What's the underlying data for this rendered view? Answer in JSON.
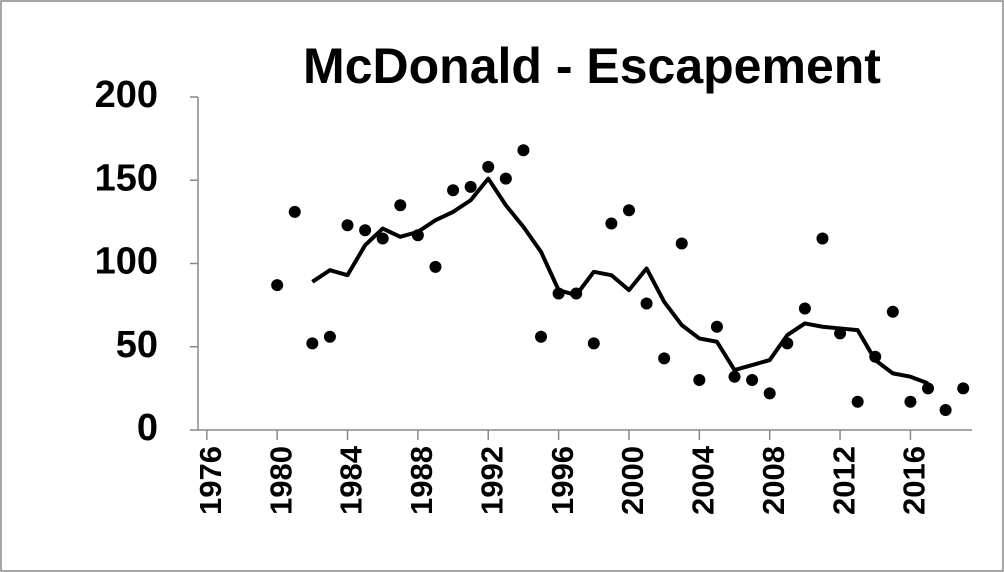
{
  "chart_data": {
    "type": "line",
    "title": "McDonald - Escapement",
    "xlim": [
      1975.5,
      2019.5
    ],
    "xticks": [
      1976,
      1980,
      1984,
      1988,
      1992,
      1996,
      2000,
      2004,
      2008,
      2012,
      2016
    ],
    "ylim": [
      0,
      200
    ],
    "yticks": [
      0,
      50,
      100,
      150,
      200
    ],
    "grid": false,
    "series": [
      {
        "style": "markers",
        "color": "#000000",
        "x": [
          1980,
          1981,
          1982,
          1983,
          1984,
          1985,
          1986,
          1987,
          1988,
          1989,
          1990,
          1991,
          1992,
          1993,
          1994,
          1995,
          1996,
          1997,
          1998,
          1999,
          2000,
          2001,
          2002,
          2003,
          2004,
          2005,
          2006,
          2007,
          2008,
          2009,
          2010,
          2011,
          2012,
          2013,
          2014,
          2015,
          2016,
          2017,
          2018,
          2019
        ],
        "values": [
          87,
          131,
          52,
          56,
          123,
          120,
          115,
          135,
          117,
          98,
          144,
          146,
          158,
          151,
          168,
          56,
          82,
          82,
          52,
          124,
          132,
          76,
          43,
          112,
          30,
          62,
          32,
          30,
          22,
          52,
          73,
          115,
          58,
          17,
          44,
          71,
          17,
          25,
          12,
          25
        ]
      },
      {
        "style": "line",
        "color": "#000000",
        "x": [
          1982,
          1983,
          1984,
          1985,
          1986,
          1987,
          1988,
          1989,
          1990,
          1991,
          1992,
          1993,
          1994,
          1995,
          1996,
          1997,
          1998,
          1999,
          2000,
          2001,
          2002,
          2003,
          2004,
          2005,
          2006,
          2007,
          2008,
          2009,
          2010,
          2011,
          2012,
          2013,
          2014,
          2015,
          2016,
          2017
        ],
        "values": [
          89,
          96,
          93,
          111,
          121,
          116,
          119,
          126,
          131,
          138,
          151,
          135,
          122,
          107,
          84,
          81,
          95,
          93,
          84,
          97,
          77,
          63,
          55,
          53,
          36,
          39,
          42,
          57,
          64,
          62,
          61,
          60,
          42,
          34,
          32,
          28
        ]
      }
    ]
  }
}
